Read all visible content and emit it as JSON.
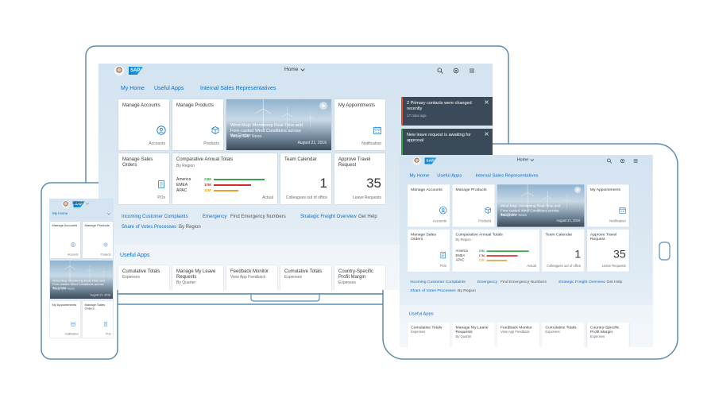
{
  "shell": {
    "logo": "SAP",
    "home": "Home"
  },
  "tabs": [
    "My Home",
    "Useful Apps",
    "Internal Sales Representatives"
  ],
  "tiles": [
    {
      "title": "Manage Accounts",
      "footer": "Accounts"
    },
    {
      "title": "Manage Products",
      "footer": "Products"
    },
    {
      "text": "Wind Map: Monitoring Real-Time and Fore-casted Wind Conditions across the Globe",
      "source": "Today, SAP News",
      "date": "August 21, 2016"
    },
    {
      "title": "My Appointments",
      "footer": "Notification"
    },
    {
      "title": "Manage Sales Orders",
      "footer": "POs"
    },
    {
      "title": "Comparative Annual Totals",
      "subtitle": "By Region",
      "footer": "Actual",
      "categories": [
        "America",
        "EMEA",
        "APAC"
      ],
      "values": [
        23,
        17,
        11
      ],
      "value_labels": [
        "23M",
        "17M",
        "11M"
      ],
      "colors": [
        "#3aa34a",
        "#d9292b",
        "#e9a230"
      ]
    },
    {
      "title": "Team Calendar",
      "number": 1,
      "footer": "Colleagues out of office"
    },
    {
      "title": "Approve Travel Request",
      "number": 35,
      "footer": "Leave Requests"
    }
  ],
  "links": [
    {
      "text": "Incoming Customer Complaints"
    },
    {
      "text": "Emergency",
      "sub": "Find Emergency Numbers"
    },
    {
      "text": "Strategic Freight Overview",
      "sub": "Get Help"
    },
    {
      "text": "Share of Votes Processes",
      "sub": "By Region"
    }
  ],
  "section": "Useful Apps",
  "apps": [
    {
      "title": "Cumulative Totals",
      "subtitle": "Expenses"
    },
    {
      "title": "Manage My Leave Requests",
      "subtitle": "By Quarter"
    },
    {
      "title": "Feedback Monitor",
      "subtitle": "View App Feedback"
    },
    {
      "title": "Cumulative Totals",
      "subtitle": "Expenses"
    },
    {
      "title": "Country-Specific Profit Margin",
      "subtitle": "Expenses"
    }
  ],
  "notifications": [
    {
      "text": "2 Primary contacts were changed recently",
      "time": "17 mins ago",
      "color": "#e2513a"
    },
    {
      "text": "New leave request is awaiting for approval",
      "color": "#3aa34a"
    }
  ]
}
